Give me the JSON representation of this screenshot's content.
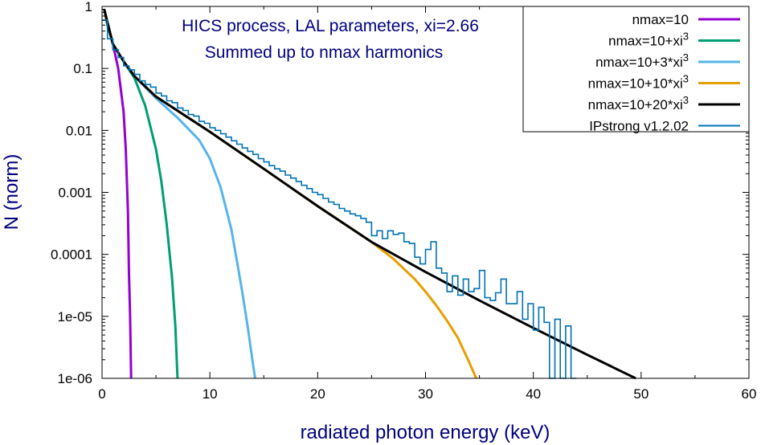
{
  "chart_data": {
    "type": "line",
    "title": "HICS process, LAL parameters, xi=2.66",
    "subtitle": "Summed up to nmax harmonics",
    "xlabel": "radiated photon energy (keV)",
    "ylabel": "N (norm)",
    "xlim": [
      0,
      60
    ],
    "ylim": [
      1e-06,
      1
    ],
    "yscale": "log",
    "grid": false,
    "legend_position": "top-right",
    "x_ticks": [
      "0",
      "10",
      "20",
      "30",
      "40",
      "50",
      "60"
    ],
    "y_ticks": [
      "1",
      "0.1",
      "0.01",
      "0.001",
      "0.0001",
      "1e-05",
      "1e-06"
    ],
    "series": [
      {
        "name": "nmax=10",
        "legend_sup": "",
        "color": "#9400d3",
        "style": "line",
        "x": [
          0.2,
          0.5,
          1.0,
          1.5,
          2.0,
          2.2,
          2.4,
          2.5,
          2.6,
          2.7
        ],
        "y": [
          0.9,
          0.5,
          0.25,
          0.1,
          0.02,
          0.005,
          0.0005,
          5e-05,
          1e-05,
          1e-06
        ]
      },
      {
        "name": "nmax=10+xi",
        "legend_sup": "3",
        "color": "#009e73",
        "style": "line",
        "x": [
          0.2,
          0.5,
          1.0,
          2.0,
          3.0,
          4.0,
          5.0,
          5.5,
          6.0,
          6.5,
          6.8,
          7.0
        ],
        "y": [
          0.9,
          0.5,
          0.25,
          0.13,
          0.07,
          0.025,
          0.005,
          0.0015,
          0.0003,
          4e-05,
          7e-06,
          1e-06
        ]
      },
      {
        "name": "nmax=10+3*xi",
        "legend_sup": "3",
        "color": "#56b4e9",
        "style": "line",
        "x": [
          0.2,
          1,
          2,
          3,
          5,
          7,
          9,
          10,
          11,
          12,
          12.5,
          13,
          13.5,
          14,
          14.2
        ],
        "y": [
          0.9,
          0.25,
          0.13,
          0.075,
          0.033,
          0.016,
          0.007,
          0.0035,
          0.0012,
          0.00025,
          8e-05,
          2.5e-05,
          7e-06,
          1.7e-06,
          1e-06
        ]
      },
      {
        "name": "nmax=10+10*xi",
        "legend_sup": "3",
        "color": "#e69f00",
        "style": "line",
        "x": [
          0.2,
          1,
          2,
          3,
          5,
          10,
          15,
          20,
          25,
          27,
          29,
          30,
          31,
          32,
          33,
          34,
          34.7
        ],
        "y": [
          0.9,
          0.25,
          0.13,
          0.075,
          0.035,
          0.0095,
          0.0024,
          0.0006,
          0.000158,
          8.5e-05,
          4e-05,
          2.5e-05,
          1.5e-05,
          8.5e-06,
          4.5e-06,
          1.9e-06,
          1e-06
        ]
      },
      {
        "name": "nmax=10+20*xi",
        "legend_sup": "3",
        "color": "#000000",
        "style": "line",
        "x": [
          0.2,
          1,
          2,
          3,
          5,
          10,
          15,
          20,
          25,
          30,
          35,
          40,
          45,
          49.5
        ],
        "y": [
          0.9,
          0.25,
          0.13,
          0.075,
          0.035,
          0.0095,
          0.0024,
          0.0006,
          0.000158,
          5.2e-05,
          1.8e-05,
          6.5e-06,
          2.4e-06,
          1e-06
        ]
      },
      {
        "name": "IPstrong v1.2.02",
        "legend_sup": "",
        "color": "#0072b2",
        "style": "step",
        "x": [
          0.5,
          1.0,
          1.5,
          2.0,
          2.5,
          3.0,
          3.5,
          4.0,
          4.5,
          5.0,
          5.5,
          6.0,
          6.5,
          7.0,
          7.5,
          8.0,
          8.5,
          9.0,
          9.5,
          10.0,
          10.5,
          11.0,
          11.5,
          12.0,
          12.5,
          13.0,
          13.5,
          14.0,
          14.5,
          15.0,
          15.5,
          16.0,
          16.5,
          17.0,
          17.5,
          18.0,
          18.5,
          19.0,
          19.5,
          20.0,
          20.5,
          21.0,
          21.5,
          22.0,
          22.5,
          23.0,
          23.5,
          24.0,
          24.5,
          25.0,
          25.5,
          26.0,
          26.5,
          27.0,
          27.5,
          28.0,
          28.5,
          29.0,
          29.5,
          30.0,
          30.5,
          31.0,
          31.5,
          32.0,
          32.5,
          33.0,
          33.5,
          34.0,
          34.5,
          35.0,
          35.5,
          36.0,
          36.5,
          37.0,
          37.5,
          38.0,
          38.5,
          39.0,
          39.5,
          40.0,
          40.5,
          41.0,
          41.5,
          42.0,
          42.5,
          43.0,
          43.5,
          44.0
        ],
        "y": [
          0.6,
          0.3,
          0.2,
          0.15,
          0.11,
          0.095,
          0.08,
          0.063,
          0.055,
          0.05,
          0.04,
          0.036,
          0.03,
          0.028,
          0.023,
          0.021,
          0.018,
          0.017,
          0.014,
          0.013,
          0.011,
          0.01,
          0.0088,
          0.0078,
          0.0068,
          0.006,
          0.0052,
          0.0046,
          0.0041,
          0.0035,
          0.0031,
          0.0027,
          0.0024,
          0.0022,
          0.0019,
          0.0017,
          0.0015,
          0.0013,
          0.00115,
          0.001,
          0.00092,
          0.0008,
          0.0007,
          0.00064,
          0.00055,
          0.0005,
          0.00045,
          0.00042,
          0.00038,
          0.00033,
          0.0002,
          0.00024,
          0.00018,
          0.00024,
          0.00021,
          0.00022,
          0.00016,
          0.00015,
          9e-05,
          7e-05,
          0.00012,
          0.00016,
          6e-05,
          5e-05,
          2.5e-05,
          4.5e-05,
          2.2e-05,
          4e-05,
          2.5e-05,
          2.8e-05,
          5.5e-05,
          2e-05,
          1.8e-05,
          2.4e-05,
          4e-05,
          1.6e-05,
          1.6e-05,
          2.5e-05,
          9e-06,
          1.6e-05,
          6e-06,
          1.4e-05,
          8e-06,
          1e-06,
          9e-06,
          1e-06,
          7e-06,
          1e-06
        ]
      }
    ]
  }
}
